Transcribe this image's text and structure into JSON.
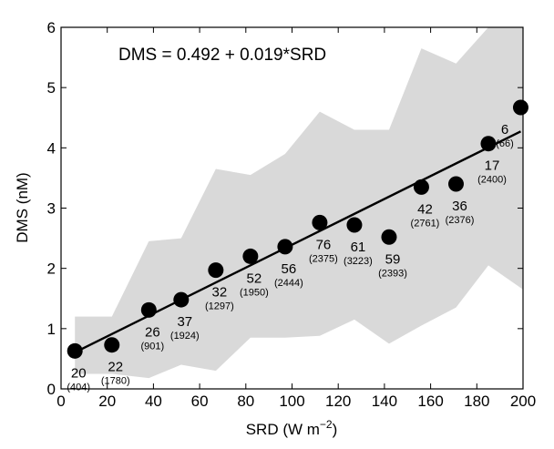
{
  "chart_data": {
    "type": "scatter",
    "equation": "DMS = 0.492 + 0.019*SRD",
    "xlabel": "SRD (W m",
    "xlabel_sup": "−2",
    "xlabel_end": ")",
    "ylabel": "DMS (nM)",
    "xlim": [
      0,
      200
    ],
    "ylim": [
      0,
      6
    ],
    "xticks": [
      0,
      20,
      40,
      60,
      80,
      100,
      120,
      140,
      160,
      180,
      200
    ],
    "yticks": [
      0,
      1,
      2,
      3,
      4,
      5,
      6
    ],
    "grid": false,
    "points": [
      {
        "x": 6,
        "y": 0.63,
        "n": "20",
        "count": "(404)"
      },
      {
        "x": 22,
        "y": 0.73,
        "n": "22",
        "count": "(1780)"
      },
      {
        "x": 38,
        "y": 1.31,
        "n": "26",
        "count": "(901)"
      },
      {
        "x": 52,
        "y": 1.48,
        "n": "37",
        "count": "(1924)"
      },
      {
        "x": 67,
        "y": 1.97,
        "n": "32",
        "count": "(1297)"
      },
      {
        "x": 82,
        "y": 2.2,
        "n": "52",
        "count": "(1950)"
      },
      {
        "x": 97,
        "y": 2.36,
        "n": "56",
        "count": "(2444)"
      },
      {
        "x": 112,
        "y": 2.76,
        "n": "76",
        "count": "(2375)"
      },
      {
        "x": 127,
        "y": 2.72,
        "n": "61",
        "count": "(3223)"
      },
      {
        "x": 142,
        "y": 2.52,
        "n": "59",
        "count": "(2393)"
      },
      {
        "x": 156,
        "y": 3.35,
        "n": "42",
        "count": "(2761)"
      },
      {
        "x": 171,
        "y": 3.4,
        "n": "36",
        "count": "(2376)"
      },
      {
        "x": 185,
        "y": 4.07,
        "n": "17",
        "count": "(2400)"
      },
      {
        "x": 199,
        "y": 4.67,
        "n": "6",
        "count": "(66)"
      }
    ],
    "fit": {
      "intercept": 0.492,
      "slope": 0.019
    },
    "range_band": {
      "x": [
        6,
        22,
        38,
        52,
        67,
        82,
        97,
        112,
        127,
        142,
        156,
        171,
        185,
        200
      ],
      "upper": [
        1.2,
        1.2,
        2.45,
        2.5,
        3.65,
        3.55,
        3.9,
        4.6,
        4.3,
        4.3,
        5.65,
        5.4,
        6.0,
        6.0
      ],
      "lower": [
        0.25,
        0.25,
        0.18,
        0.4,
        0.3,
        0.85,
        0.85,
        0.88,
        1.15,
        0.75,
        1.05,
        1.35,
        2.05,
        1.65
      ]
    },
    "colors": {
      "band": "#d9d9d9",
      "marker": "#000000",
      "line": "#000000"
    }
  }
}
